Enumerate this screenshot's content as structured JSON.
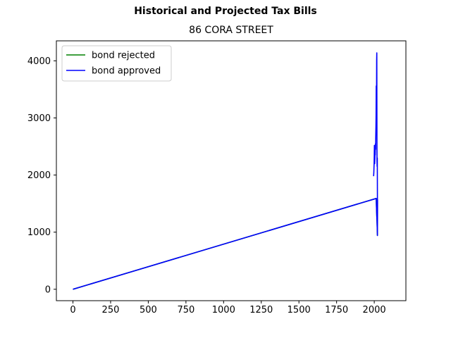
{
  "figure": {
    "suptitle": "Historical and Projected Tax Bills",
    "title": "86 CORA STREET"
  },
  "chart_data": {
    "type": "line",
    "xlim": [
      -110,
      2210
    ],
    "ylim": [
      -200,
      4350
    ],
    "xticks": [
      0,
      250,
      500,
      750,
      1000,
      1250,
      1500,
      1750,
      2000
    ],
    "yticks": [
      0,
      1000,
      2000,
      3000,
      4000
    ],
    "legend": {
      "location": "upper-left"
    },
    "grid": false,
    "series": [
      {
        "name": "bond rejected",
        "color": "#008000",
        "x": [
          0,
          2013,
          2014,
          2015,
          2016,
          2017,
          2018,
          2019,
          2020,
          2021
        ],
        "y": [
          0,
          1590,
          1500,
          1420,
          1350,
          1280,
          1200,
          1120,
          1030,
          940
        ]
      },
      {
        "name": "bond approved",
        "color": "#0000ff",
        "x": [
          0,
          2013,
          2014,
          2015,
          2016,
          2017,
          2018,
          2019,
          2020,
          2021,
          2022,
          2021,
          2020,
          2019,
          2018,
          2017,
          2016,
          2015,
          2014,
          2013,
          2012,
          2011,
          2010,
          2009,
          2008,
          2007,
          2006,
          2005,
          2004,
          2003,
          2002,
          2001,
          2000,
          1999,
          1998,
          1997,
          1996
        ],
        "y": [
          0,
          1590,
          1500,
          1420,
          1350,
          1280,
          1200,
          1120,
          1030,
          940,
          1560,
          1580,
          2300,
          2150,
          2250,
          4140,
          4000,
          3150,
          3250,
          3560,
          3050,
          2850,
          2650,
          2450,
          2550,
          2500,
          2350,
          2420,
          2300,
          2200,
          2250,
          2520,
          2340,
          2200,
          2130,
          2050,
          1980
        ]
      }
    ]
  }
}
